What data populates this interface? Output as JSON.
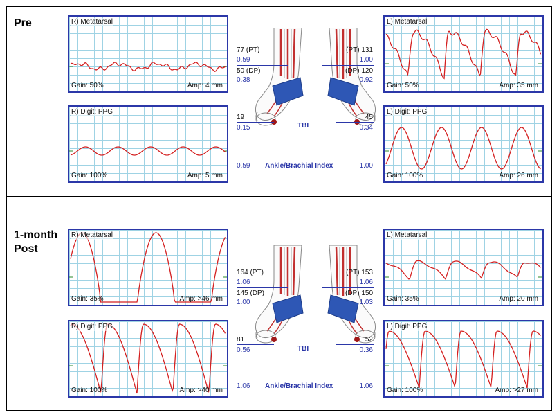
{
  "sections": [
    {
      "label": "Pre",
      "panels": {
        "rmeta": {
          "title": "R) Metatarsal",
          "gain": "Gain: 50%",
          "amp": "Amp: 4 mm"
        },
        "rdigit": {
          "title": "R) Digit: PPG",
          "gain": "Gain: 100%",
          "amp": "Amp: 5 mm"
        },
        "lmeta": {
          "title": "L) Metatarsal",
          "gain": "Gain: 50%",
          "amp": "Amp: 35 mm"
        },
        "ldigit": {
          "title": "L) Digit: PPG",
          "gain": "Gain: 100%",
          "amp": "Amp: 26 mm"
        }
      },
      "right": {
        "pt": "77 (PT)",
        "pt_index": "0.59",
        "dp": "50 (DP)",
        "dp_index": "0.38",
        "tbi_pressure": "19",
        "tbi_index": "0.15",
        "abi": "0.59"
      },
      "left": {
        "pt": "(PT) 131",
        "pt_index": "1.00",
        "dp": "(DP) 120",
        "dp_index": "0.92",
        "tbi_pressure": "45",
        "tbi_index": "0.34",
        "abi": "1.00"
      },
      "tbi_label": "TBI",
      "abi_label": "Ankle/Brachial Index"
    },
    {
      "label": "1-month Post",
      "panels": {
        "rmeta": {
          "title": "R) Metatarsal",
          "gain": "Gain: 35%",
          "amp": "Amp: >46 mm"
        },
        "rdigit": {
          "title": "R) Digit: PPG",
          "gain": "Gain: 100%",
          "amp": "Amp: >40 mm"
        },
        "lmeta": {
          "title": "L) Metatarsal",
          "gain": "Gain: 35%",
          "amp": "Amp: 20 mm"
        },
        "ldigit": {
          "title": "L) Digit: PPG",
          "gain": "Gain: 100%",
          "amp": "Amp: >27 mm"
        }
      },
      "right": {
        "pt": "164 (PT)",
        "pt_index": "1.06",
        "dp": "145 (DP)",
        "dp_index": "1.00",
        "tbi_pressure": "81",
        "tbi_index": "0.56",
        "abi": "1.06"
      },
      "left": {
        "pt": "(PT) 153",
        "pt_index": "1.06",
        "dp": "(DP) 150",
        "dp_index": "1.03",
        "tbi_pressure": "52",
        "tbi_index": "0.36",
        "abi": "1.06"
      },
      "tbi_label": "TBI",
      "abi_label": "Ankle/Brachial Index"
    }
  ],
  "colors": {
    "frame": "#2b37a8",
    "grid": "#9fd3e4",
    "trace": "#d42020",
    "baseline": "#2a8a2a",
    "cuff": "#2e57b5"
  }
}
